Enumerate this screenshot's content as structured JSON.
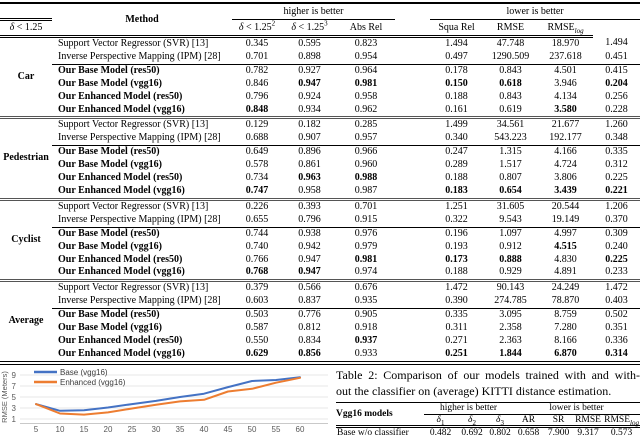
{
  "table1": {
    "header": {
      "method": "Method",
      "higher_group": "higher is better",
      "lower_group": "lower is better",
      "cols": [
        "δ < 1.25",
        "δ < 1.25^2",
        "δ < 1.25^3",
        "Abs Rel",
        "Squa Rel",
        "RMSE",
        "RMSE_log"
      ]
    },
    "groups": [
      {
        "label": "Car",
        "baselines": [
          {
            "method": "Support Vector Regressor (SVR) [13]",
            "values": [
              "0.345",
              "0.595",
              "0.823",
              "1.494",
              "47.748",
              "18.970",
              "1.494"
            ],
            "bold": []
          },
          {
            "method": "Inverse Perspective Mapping (IPM) [28]",
            "values": [
              "0.701",
              "0.898",
              "0.954",
              "0.497",
              "1290.509",
              "237.618",
              "0.451"
            ],
            "bold": []
          }
        ],
        "ours": [
          {
            "method": "Our Base Model (res50)",
            "values": [
              "0.782",
              "0.927",
              "0.964",
              "0.178",
              "0.843",
              "4.501",
              "0.415"
            ],
            "bold": []
          },
          {
            "method": "Our Base Model (vgg16)",
            "values": [
              "0.846",
              "0.947",
              "0.981",
              "0.150",
              "0.618",
              "3.946",
              "0.204"
            ],
            "bold": [
              1,
              2,
              3,
              4,
              6
            ]
          },
          {
            "method": "Our Enhanced Model (res50)",
            "values": [
              "0.796",
              "0.924",
              "0.958",
              "0.188",
              "0.843",
              "4.134",
              "0.256"
            ],
            "bold": []
          },
          {
            "method": "Our Enhanced Model (vgg16)",
            "values": [
              "0.848",
              "0.934",
              "0.962",
              "0.161",
              "0.619",
              "3.580",
              "0.228"
            ],
            "bold": [
              0,
              5
            ]
          }
        ]
      },
      {
        "label": "Pedestrian",
        "baselines": [
          {
            "method": "Support Vector Regressor (SVR) [13]",
            "values": [
              "0.129",
              "0.182",
              "0.285",
              "1.499",
              "34.561",
              "21.677",
              "1.260"
            ],
            "bold": []
          },
          {
            "method": "Inverse Perspective Mapping (IPM) [28]",
            "values": [
              "0.688",
              "0.907",
              "0.957",
              "0.340",
              "543.223",
              "192.177",
              "0.348"
            ],
            "bold": []
          }
        ],
        "ours": [
          {
            "method": "Our Base Model (res50)",
            "values": [
              "0.649",
              "0.896",
              "0.966",
              "0.247",
              "1.315",
              "4.166",
              "0.335"
            ],
            "bold": []
          },
          {
            "method": "Our Base Model (vgg16)",
            "values": [
              "0.578",
              "0.861",
              "0.960",
              "0.289",
              "1.517",
              "4.724",
              "0.312"
            ],
            "bold": []
          },
          {
            "method": "Our Enhanced Model (res50)",
            "values": [
              "0.734",
              "0.963",
              "0.988",
              "0.188",
              "0.807",
              "3.806",
              "0.225"
            ],
            "bold": [
              1,
              2
            ]
          },
          {
            "method": "Our Enhanced Model (vgg16)",
            "values": [
              "0.747",
              "0.958",
              "0.987",
              "0.183",
              "0.654",
              "3.439",
              "0.221"
            ],
            "bold": [
              0,
              3,
              4,
              5,
              6
            ]
          }
        ]
      },
      {
        "label": "Cyclist",
        "baselines": [
          {
            "method": "Support Vector Regressor (SVR) [13]",
            "values": [
              "0.226",
              "0.393",
              "0.701",
              "1.251",
              "31.605",
              "20.544",
              "1.206"
            ],
            "bold": []
          },
          {
            "method": "Inverse Perspective Mapping (IPM) [28]",
            "values": [
              "0.655",
              "0.796",
              "0.915",
              "0.322",
              "9.543",
              "19.149",
              "0.370"
            ],
            "bold": []
          }
        ],
        "ours": [
          {
            "method": "Our Base Model (res50)",
            "values": [
              "0.744",
              "0.938",
              "0.976",
              "0.196",
              "1.097",
              "4.997",
              "0.309"
            ],
            "bold": []
          },
          {
            "method": "Our Base Model (vgg16)",
            "values": [
              "0.740",
              "0.942",
              "0.979",
              "0.193",
              "0.912",
              "4.515",
              "0.240"
            ],
            "bold": [
              5
            ]
          },
          {
            "method": "Our Enhanced Model (res50)",
            "values": [
              "0.766",
              "0.947",
              "0.981",
              "0.173",
              "0.888",
              "4.830",
              "0.225"
            ],
            "bold": [
              2,
              3,
              4,
              6
            ]
          },
          {
            "method": "Our Enhanced Model (vgg16)",
            "values": [
              "0.768",
              "0.947",
              "0.974",
              "0.188",
              "0.929",
              "4.891",
              "0.233"
            ],
            "bold": [
              0,
              1
            ]
          }
        ]
      },
      {
        "label": "Average",
        "baselines": [
          {
            "method": "Support Vector Regressor (SVR) [13]",
            "values": [
              "0.379",
              "0.566",
              "0.676",
              "1.472",
              "90.143",
              "24.249",
              "1.472"
            ],
            "bold": []
          },
          {
            "method": "Inverse Perspective Mapping (IPM) [28]",
            "values": [
              "0.603",
              "0.837",
              "0.935",
              "0.390",
              "274.785",
              "78.870",
              "0.403"
            ],
            "bold": []
          }
        ],
        "ours": [
          {
            "method": "Our Base Model (res50)",
            "values": [
              "0.503",
              "0.776",
              "0.905",
              "0.335",
              "3.095",
              "8.759",
              "0.502"
            ],
            "bold": []
          },
          {
            "method": "Our Base Model (vgg16)",
            "values": [
              "0.587",
              "0.812",
              "0.918",
              "0.311",
              "2.358",
              "7.280",
              "0.351"
            ],
            "bold": []
          },
          {
            "method": "Our Enhanced Model (res50)",
            "values": [
              "0.550",
              "0.834",
              "0.937",
              "0.271",
              "2.363",
              "8.166",
              "0.336"
            ],
            "bold": [
              2
            ]
          },
          {
            "method": "Our Enhanced Model (vgg16)",
            "values": [
              "0.629",
              "0.856",
              "0.933",
              "0.251",
              "1.844",
              "6.870",
              "0.314"
            ],
            "bold": [
              0,
              1,
              3,
              4,
              5,
              6
            ]
          }
        ]
      }
    ]
  },
  "chart_data": {
    "type": "line",
    "x": [
      5,
      10,
      15,
      20,
      25,
      30,
      35,
      40,
      45,
      50,
      55,
      60
    ],
    "series": [
      {
        "name": "Base (vgg16)",
        "color": "#4472C4",
        "values": [
          3.7,
          2.5,
          2.6,
          3.1,
          3.7,
          4.3,
          5.0,
          5.6,
          6.8,
          7.9,
          8.1,
          8.6
        ]
      },
      {
        "name": "Enhanced (vgg16)",
        "color": "#ED7D31",
        "values": [
          3.7,
          2.0,
          1.8,
          2.2,
          2.9,
          3.6,
          4.2,
          4.5,
          6.0,
          6.5,
          7.6,
          8.5
        ]
      }
    ],
    "ylabel": "RMSE (Meters)",
    "yticks": [
      1,
      3,
      5,
      7,
      9
    ],
    "ylim": [
      0,
      9.5
    ],
    "grid": true,
    "legend_position": "top-left",
    "tick_color": "#595959",
    "grid_color": "#e7e7e7",
    "axis_color": "#c9c9c9"
  },
  "caption": {
    "line1": "Table 2: Comparison of our models trained with and with-",
    "line2": "out the classifier on (average) KITTI distance estimation."
  },
  "table2": {
    "col_header": "Vgg16 models",
    "higher_label": "higher is better",
    "lower_label": "lower is better",
    "cols": [
      "δ_1",
      "δ_2",
      "δ_3",
      "AR",
      "SR",
      "RMSE",
      "RMSE_log"
    ],
    "rows": [
      {
        "name": "Base w/o classifier",
        "values": [
          "0.482",
          "0.692",
          "0.802",
          "0.658",
          "7.900",
          "9.317",
          "0.573"
        ]
      }
    ]
  }
}
